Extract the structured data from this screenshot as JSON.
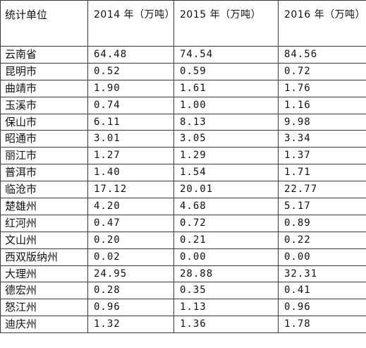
{
  "table": {
    "headers": [
      "统计单位",
      "2014 年（万吨）",
      "2015 年（万吨）",
      "2016 年（万吨）"
    ],
    "rows": [
      [
        "云南省",
        "64.48",
        "74.54",
        "84.56"
      ],
      [
        "昆明市",
        "0.52",
        "0.59",
        "0.72"
      ],
      [
        "曲靖市",
        "1.90",
        "1.61",
        "1.76"
      ],
      [
        "玉溪市",
        "0.74",
        "1.00",
        "1.16"
      ],
      [
        "保山市",
        "6.11",
        "8.13",
        "9.98"
      ],
      [
        "昭通市",
        "3.01",
        "3.05",
        "3.34"
      ],
      [
        "丽江市",
        "1.27",
        "1.29",
        "1.37"
      ],
      [
        "普洱市",
        "1.40",
        "1.54",
        "1.71"
      ],
      [
        "临沧市",
        "17.12",
        "20.01",
        "22.77"
      ],
      [
        "楚雄州",
        "4.20",
        "4.68",
        "5.17"
      ],
      [
        "红河州",
        "0.47",
        "0.72",
        "0.89"
      ],
      [
        "文山州",
        "0.20",
        "0.21",
        "0.22"
      ],
      [
        "西双版纳州",
        "0.02",
        "0.00",
        "0.00"
      ],
      [
        "大理州",
        "24.95",
        "28.88",
        "32.31"
      ],
      [
        "德宏州",
        "0.28",
        "0.35",
        "0.41"
      ],
      [
        "怒江州",
        "0.96",
        "1.13",
        "0.96"
      ],
      [
        "迪庆州",
        "1.32",
        "1.36",
        "1.78"
      ]
    ]
  }
}
